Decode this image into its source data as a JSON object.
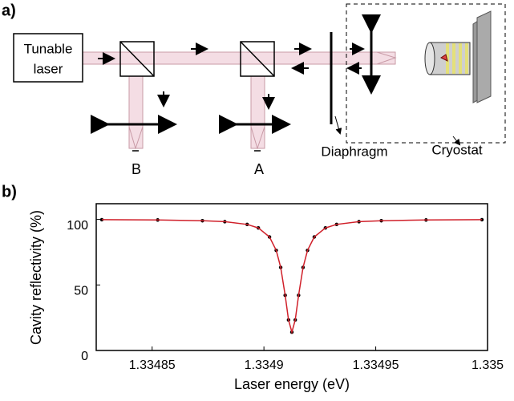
{
  "panel_a": {
    "label": "a)",
    "laser": [
      "Tunable",
      "laser"
    ],
    "path_b": "B",
    "path_a": "A",
    "diaphragm": "Diaphragm",
    "cryostat": "Cryostat"
  },
  "chart_data": {
    "type": "scatter",
    "panel_label": "b)",
    "x_label": "Laser energy (eV)",
    "y_label": "Cavity reflectivity (%)",
    "xlim": [
      1.334825,
      1.335
    ],
    "xticks": [
      1.33485,
      1.3349,
      1.33495,
      1.335
    ],
    "ylim": [
      0,
      112
    ],
    "yticks": [
      0,
      50,
      100
    ],
    "x": [
      1.3348275,
      1.3348525,
      1.3348725,
      1.3348825,
      1.3348925,
      1.3348975,
      1.3349025,
      1.3349055,
      1.3349075,
      1.3349095,
      1.334911,
      1.3349125,
      1.334914,
      1.3349155,
      1.3349175,
      1.3349195,
      1.3349225,
      1.3349275,
      1.3349325,
      1.3349425,
      1.3349525,
      1.3349725,
      1.3349975
    ],
    "series": [
      {
        "color": "#000000",
        "style": "dots",
        "values": [
          99.8,
          99.6,
          99.0,
          98.3,
          96.2,
          93.5,
          86.6,
          76.4,
          63.4,
          42.1,
          23.3,
          14,
          23.3,
          42.1,
          63.4,
          76.4,
          86.6,
          93.5,
          96.2,
          98.3,
          99.0,
          99.6,
          99.8
        ]
      },
      {
        "color": "#d0202a",
        "style": "line",
        "values": [
          99.8,
          99.6,
          99.0,
          98.3,
          96.2,
          93.5,
          86.6,
          76.4,
          63.4,
          42.1,
          23.3,
          14,
          23.3,
          42.1,
          63.4,
          76.4,
          86.6,
          93.5,
          96.2,
          98.3,
          99.0,
          99.6,
          99.8
        ]
      }
    ]
  }
}
